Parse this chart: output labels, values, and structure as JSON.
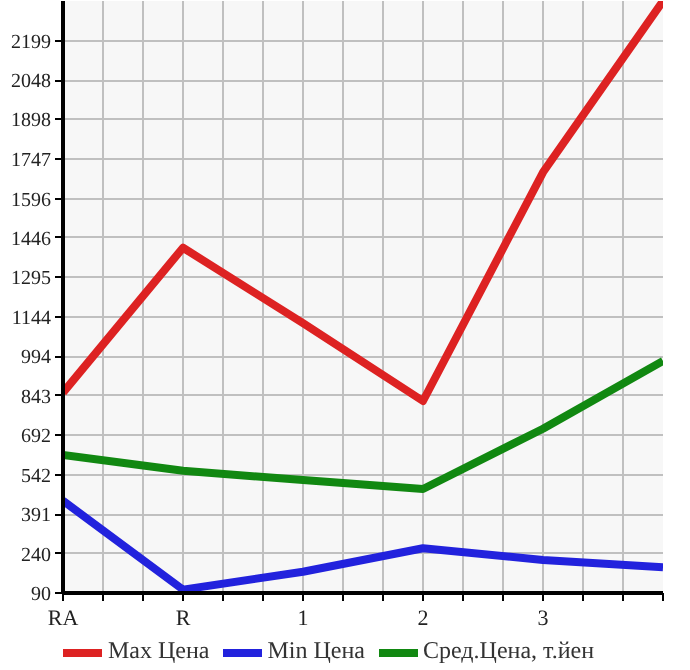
{
  "chart_data": {
    "type": "line",
    "categories": [
      "RA",
      "R",
      "1",
      "2",
      "3",
      null
    ],
    "series": [
      {
        "name": "Max Цена",
        "color": "#dd2222",
        "values": [
          855,
          1408,
          1120,
          823,
          1696,
          2350
        ]
      },
      {
        "name": "Min Цена",
        "color": "#2222dd",
        "values": [
          442,
          103,
          171,
          261,
          216,
          188
        ]
      },
      {
        "name": "Сред.Цена, т.йен",
        "color": "#118811",
        "values": [
          617,
          557,
          521,
          487,
          717,
          976
        ]
      }
    ],
    "ylim": [
      90,
      2350
    ],
    "yticks": [
      90,
      240,
      391,
      542,
      692,
      843,
      994,
      1144,
      1295,
      1446,
      1596,
      1747,
      1898,
      2048,
      2199
    ],
    "grid": true,
    "legend": "bottom",
    "marker": "none",
    "line_style": "solid"
  }
}
